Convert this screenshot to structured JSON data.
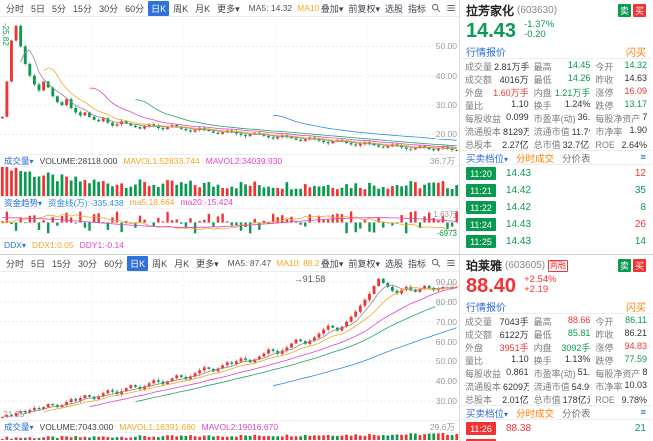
{
  "colors": {
    "up": "#f23333",
    "down": "#0a9950",
    "dark": "#333333",
    "accent": "#2b6dd8",
    "orange": "#ff7e00",
    "active_tab_bg": "#2f72db"
  },
  "panels": [
    {
      "toolbar": {
        "periods": [
          {
            "label": "分时"
          },
          {
            "label": "5日"
          },
          {
            "label": "5分"
          },
          {
            "label": "15分"
          },
          {
            "label": "30分"
          },
          {
            "label": "60分"
          },
          {
            "label": "日K",
            "active": true
          },
          {
            "label": "周K"
          },
          {
            "label": "月K"
          },
          {
            "label": "更多▾"
          }
        ],
        "mas": [
          [
            "MA5: 14.32",
            "#555555"
          ],
          [
            "MA10: 13.95",
            "#f5a623"
          ],
          [
            "MA20: 13.99",
            "#e143c7"
          ],
          [
            "MA30: 13.78",
            "#21a567"
          ],
          [
            "MA60: 13.82",
            "#2e8ae6"
          ],
          [
            "MA120: 13.98",
            "#8d68d8"
          ]
        ],
        "tools": [
          "叠加▾",
          "前复权▾",
          "选股",
          "指标"
        ]
      },
      "chart": {
        "closes": [
          26,
          38,
          52,
          57,
          50,
          44,
          40,
          37,
          35,
          38,
          36,
          33,
          31,
          30,
          32,
          29,
          27.5,
          26.5,
          27.5,
          26,
          25,
          24.5,
          25.5,
          24,
          23,
          23.5,
          24.5,
          23.8,
          23,
          22.5,
          22,
          22.8,
          23.5,
          22.9,
          22.2,
          21.8,
          22.5,
          23.2,
          22.6,
          21.9,
          21.4,
          21,
          21.6,
          22.2,
          21.7,
          21.1,
          20.6,
          20.2,
          20.8,
          21.4,
          20.9,
          20.3,
          19.8,
          19.4,
          20,
          20.6,
          20.1,
          19.5,
          19,
          18.6,
          19.2,
          19.8,
          19.3,
          18.7,
          18.2,
          17.8,
          18.4,
          19,
          18.5,
          17.9,
          17.4,
          17,
          17.6,
          18.2,
          17.7,
          17.1,
          16.6,
          16.2,
          16.8,
          17.4,
          16.9,
          16.3,
          15.8,
          15.5,
          16.1,
          16.7,
          16.2,
          15.6,
          15.1,
          14.9,
          15.5,
          16.1,
          15.6,
          15,
          14.6,
          15.2,
          15.8,
          15.3,
          14.7,
          14.43
        ],
        "ylim": [
          13,
          60
        ],
        "ticks": [
          50,
          40,
          30,
          20
        ],
        "left_label": "-25.82",
        "vol_profile": "decay"
      },
      "volume": {
        "label": "成交量",
        "stats": [
          [
            "VOLUME:28118.000",
            "#444444"
          ],
          [
            "MAVOL1:52833.744",
            "#f5a623"
          ],
          [
            "MAVOL2:34039.930",
            "#e143c7"
          ]
        ],
        "right_label": "36.7万"
      },
      "flow": {
        "label": "资金趋势",
        "stats": [
          [
            "资金线(万):-335.438",
            "#2e8ae6"
          ],
          [
            "ma5:18.664",
            "#f5a623"
          ],
          [
            "ma20:-15.424",
            "#e143c7"
          ]
        ],
        "right_top": "1.63万",
        "right_bottom": "-6973"
      },
      "ddx": {
        "label": "DDX",
        "stats": [
          [
            "DDX1:0.05",
            "#f5a623"
          ],
          [
            "DDY1:-0.14",
            "#e143c7"
          ]
        ]
      },
      "quote": {
        "name": "拉芳家化",
        "code": "(603630)",
        "badges": [
          {
            "text": "卖",
            "color": "#0a9950"
          },
          {
            "text": "买",
            "color": "#f23333"
          }
        ],
        "price": "14.43",
        "change_pct": "-1.37%",
        "change_val": "-0.20",
        "direction": "down",
        "tabs": [
          "行情报价",
          "闪买"
        ],
        "grid": [
          [
            [
              "成交量",
              "2.81万手",
              "dark"
            ],
            [
              "最高",
              "14.45",
              "down"
            ],
            [
              "今开",
              "14.32",
              "down"
            ]
          ],
          [
            [
              "成交额",
              "4016万",
              "dark"
            ],
            [
              "最低",
              "14.26",
              "down"
            ],
            [
              "昨收",
              "14.63",
              "dark"
            ]
          ],
          [
            [
              "外盘",
              "1.60万手",
              "up"
            ],
            [
              "内盘",
              "1.21万手",
              "down"
            ],
            [
              "涨停",
              "16.09",
              "up"
            ]
          ],
          [
            [
              "量比",
              "1.10",
              "dark"
            ],
            [
              "换手",
              "1.24%",
              "dark"
            ],
            [
              "跌停",
              "13.17",
              "down"
            ]
          ],
          [
            [
              "每股收益",
              "0.099",
              "dark"
            ],
            [
              "市盈率(动)",
              "36.48",
              "dark"
            ],
            [
              "每股净资产",
              "7.61",
              "dark"
            ]
          ],
          [
            [
              "流通股本",
              "8129万",
              "dark"
            ],
            [
              "流通市值",
              "11.7亿元",
              "dark"
            ],
            [
              "市净率",
              "1.90",
              "dark"
            ]
          ],
          [
            [
              "总股本",
              "2.27亿",
              "dark"
            ],
            [
              "总市值",
              "32.7亿元",
              "dark"
            ],
            [
              "ROE",
              "2.64%",
              "dark"
            ]
          ]
        ],
        "ladder": {
          "title": "买卖档位",
          "tabs": [
            "分时成交",
            "分价表"
          ],
          "rows": [
            {
              "time": "11:20",
              "price": "14.43",
              "vol": "12",
              "side": "down",
              "volside": "up"
            },
            {
              "time": "11:21",
              "price": "14.42",
              "vol": "35",
              "side": "down",
              "volside": "down"
            },
            {
              "time": "11:22",
              "price": "14.42",
              "vol": "8",
              "side": "down",
              "volside": "down"
            },
            {
              "time": "11:24",
              "price": "14.43",
              "vol": "26",
              "side": "down",
              "volside": "up"
            },
            {
              "time": "11:25",
              "price": "14.43",
              "vol": "14",
              "side": "down",
              "volside": "down"
            }
          ]
        }
      }
    },
    {
      "toolbar": {
        "periods": [
          {
            "label": "分时"
          },
          {
            "label": "5日"
          },
          {
            "label": "15分"
          },
          {
            "label": "30分"
          },
          {
            "label": "60分"
          },
          {
            "label": "日K",
            "active": true
          },
          {
            "label": "周K"
          },
          {
            "label": "月K"
          },
          {
            "label": "更多▾"
          }
        ],
        "mas": [
          [
            "MA5: 87.47",
            "#555555"
          ],
          [
            "MA10: 88.28",
            "#f5a623"
          ],
          [
            "MA30: 84.13",
            "#21a567"
          ],
          [
            "MA60: 78.72",
            "#2e8ae6"
          ],
          [
            "MA120: 70.73",
            "#8d68d8"
          ]
        ],
        "tools": [
          "叠加▾",
          "前复权▾",
          "选股",
          "指标"
        ]
      },
      "chart": {
        "closes": [
          22,
          23,
          22.5,
          24,
          25,
          24.3,
          25.5,
          26.5,
          26,
          27,
          28.5,
          28,
          27,
          28,
          29.5,
          31,
          30.2,
          31.5,
          33,
          32.2,
          31,
          32.5,
          34,
          35.5,
          34.8,
          33.5,
          35,
          36.5,
          38,
          37.2,
          36,
          37.5,
          39,
          40.5,
          39.8,
          38.5,
          40,
          41.5,
          43,
          42.2,
          41,
          42.5,
          44,
          45.5,
          47,
          46.2,
          45,
          46.5,
          48,
          49.5,
          48.8,
          50,
          51.5,
          50.8,
          49.5,
          51,
          52.5,
          54,
          56,
          55.2,
          53.8,
          55.5,
          57,
          59,
          61,
          60.2,
          58.8,
          60.5,
          62,
          64,
          66,
          68,
          67,
          65.5,
          67.5,
          70,
          72.5,
          75,
          78,
          81,
          84,
          88,
          91.58,
          89.5,
          87.5,
          85.5,
          84.2,
          86,
          87.5,
          86.2,
          85,
          86.5,
          88,
          87,
          85.8,
          86.5,
          87.8,
          88.66,
          87.2,
          88.4
        ],
        "ylim": [
          20,
          95
        ],
        "ticks": [
          90,
          80,
          70,
          60,
          50,
          40,
          30
        ],
        "high_label": "91.58",
        "low_label": "21.35",
        "vol_profile": "rising"
      },
      "volume": {
        "label": "成交量",
        "stats": [
          [
            "VOLUME:7043.000",
            "#444444"
          ],
          [
            "MAVOL1:16391.680",
            "#f5a623"
          ],
          [
            "MAVOL2:19016.670",
            "#e143c7"
          ]
        ],
        "right_label": "29.6万"
      },
      "quote": {
        "name": "珀莱雅",
        "code": "(603605)",
        "margin_badge": "两融",
        "badges": [
          {
            "text": "卖",
            "color": "#0a9950"
          },
          {
            "text": "买",
            "color": "#f23333"
          }
        ],
        "price": "88.40",
        "change_pct": "+2.54%",
        "change_val": "+2.19",
        "direction": "up",
        "tabs": [
          "行情报价",
          "闪买"
        ],
        "grid": [
          [
            [
              "成交量",
              "7043手",
              "dark"
            ],
            [
              "最高",
              "88.66",
              "up"
            ],
            [
              "今开",
              "86.11",
              "down"
            ]
          ],
          [
            [
              "成交额",
              "6122万",
              "dark"
            ],
            [
              "最低",
              "85.81",
              "down"
            ],
            [
              "昨收",
              "86.21",
              "dark"
            ]
          ],
          [
            [
              "外盘",
              "3951手",
              "up"
            ],
            [
              "内盘",
              "3092手",
              "down"
            ],
            [
              "涨停",
              "94.83",
              "up"
            ]
          ],
          [
            [
              "量比",
              "1.10",
              "dark"
            ],
            [
              "换手",
              "1.13%",
              "dark"
            ],
            [
              "跌停",
              "77.59",
              "down"
            ]
          ],
          [
            [
              "每股收益",
              "0.861",
              "dark"
            ],
            [
              "市盈率(动)",
              "51.31",
              "dark"
            ],
            [
              "每股净资产",
              "8.81",
              "dark"
            ]
          ],
          [
            [
              "流通股本",
              "6209万",
              "dark"
            ],
            [
              "流通市值",
              "54.9亿元",
              "dark"
            ],
            [
              "市净率",
              "10.03",
              "dark"
            ]
          ],
          [
            [
              "总股本",
              "2.01亿",
              "dark"
            ],
            [
              "总市值",
              "178亿元",
              "dark"
            ],
            [
              "ROE",
              "9.78%",
              "dark"
            ]
          ]
        ],
        "ladder": {
          "title": "买卖档位",
          "tabs": [
            "分时成交",
            "分价表"
          ],
          "rows": [
            {
              "time": "11:26",
              "price": "88.38",
              "vol": "21",
              "side": "up",
              "volside": "down"
            },
            {
              "time": "11:26",
              "price": "88.40",
              "vol": "3",
              "side": "up",
              "volside": "up"
            }
          ]
        }
      }
    }
  ]
}
